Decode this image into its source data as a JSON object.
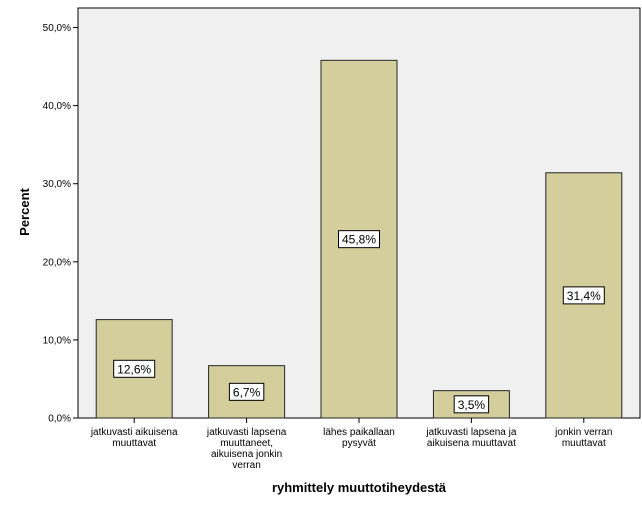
{
  "chart_data": {
    "type": "bar",
    "title": "",
    "xlabel": "ryhmittely muuttotiheydestä",
    "ylabel": "Percent",
    "ylim": [
      0,
      52.5
    ],
    "yticks": [
      0,
      10,
      20,
      30,
      40,
      50
    ],
    "ytick_labels": [
      "0,0%",
      "10,0%",
      "20,0%",
      "30,0%",
      "40,0%",
      "50,0%"
    ],
    "categories": [
      [
        "jatkuvasti aikuisena",
        "muuttavat"
      ],
      [
        "jatkuvasti lapsena",
        "muuttaneet,",
        "aikuisena jonkin",
        "verran"
      ],
      [
        "lähes paikallaan",
        "pysyvät"
      ],
      [
        "jatkuvasti lapsena ja",
        "aikuisena muuttavat"
      ],
      [
        "jonkin verran",
        "muuttavat"
      ]
    ],
    "values": [
      12.6,
      6.7,
      45.8,
      3.5,
      31.4
    ],
    "data_labels": [
      "12,6%",
      "6,7%",
      "45,8%",
      "3,5%",
      "31,4%"
    ],
    "grid": false,
    "colors": {
      "bar_fill": "#d3ce9c",
      "bar_stroke": "#262626",
      "plot_background": "#f0f0f0",
      "label_box_fill": "#ffffff"
    }
  }
}
